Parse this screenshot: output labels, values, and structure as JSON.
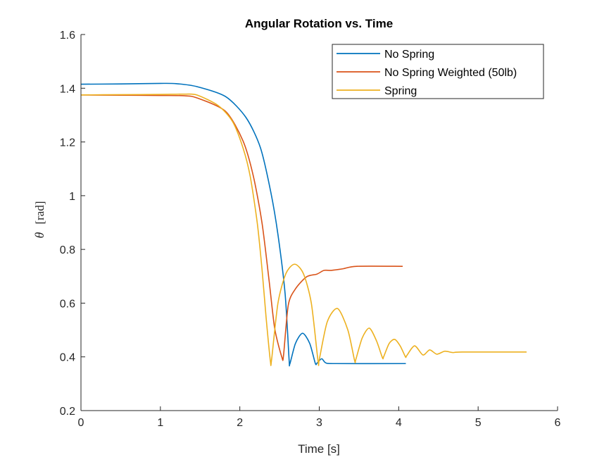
{
  "chart_data": {
    "type": "line",
    "title": "Angular Rotation vs. Time",
    "xlabel": "Time [s]",
    "ylabel_symbol": "θ",
    "ylabel_unit": "[rad]",
    "xlim": [
      0,
      6
    ],
    "ylim": [
      0.2,
      1.6
    ],
    "xticks": [
      0,
      1,
      2,
      3,
      4,
      5,
      6
    ],
    "xtick_labels": [
      "0",
      "1",
      "2",
      "3",
      "4",
      "5",
      "6"
    ],
    "yticks": [
      0.2,
      0.4,
      0.6,
      0.8,
      1.0,
      1.2,
      1.4,
      1.6
    ],
    "ytick_labels": [
      "0.2",
      "0.4",
      "0.6",
      "0.8",
      "1",
      "1.2",
      "1.4",
      "1.6"
    ],
    "grid": false,
    "legend_position": "top-right",
    "series": [
      {
        "name": "No Spring",
        "color": "#0072BD",
        "points": [
          [
            0,
            1.415
          ],
          [
            0.5,
            1.416
          ],
          [
            1.0,
            1.418
          ],
          [
            1.2,
            1.417
          ],
          [
            1.46,
            1.406
          ],
          [
            1.82,
            1.369
          ],
          [
            2.08,
            1.29
          ],
          [
            2.26,
            1.178
          ],
          [
            2.39,
            1.013
          ],
          [
            2.48,
            0.855
          ],
          [
            2.57,
            0.635
          ],
          [
            2.62,
            0.391
          ],
          [
            2.63,
            0.374
          ],
          [
            2.7,
            0.45
          ],
          [
            2.79,
            0.488
          ],
          [
            2.88,
            0.45
          ],
          [
            2.95,
            0.376
          ],
          [
            2.97,
            0.376
          ],
          [
            3.03,
            0.393
          ],
          [
            3.08,
            0.378
          ],
          [
            3.2,
            0.375
          ],
          [
            4.09,
            0.375
          ]
        ]
      },
      {
        "name": "No Spring Weighted (50lb)",
        "color": "#D95319",
        "points": [
          [
            0,
            1.375
          ],
          [
            0.5,
            1.374
          ],
          [
            1.0,
            1.373
          ],
          [
            1.3,
            1.372
          ],
          [
            1.46,
            1.364
          ],
          [
            1.82,
            1.314
          ],
          [
            2.04,
            1.204
          ],
          [
            2.17,
            1.073
          ],
          [
            2.28,
            0.897
          ],
          [
            2.37,
            0.68
          ],
          [
            2.44,
            0.504
          ],
          [
            2.53,
            0.398
          ],
          [
            2.55,
            0.405
          ],
          [
            2.61,
            0.593
          ],
          [
            2.7,
            0.653
          ],
          [
            2.84,
            0.698
          ],
          [
            2.97,
            0.708
          ],
          [
            3.06,
            0.722
          ],
          [
            3.15,
            0.722
          ],
          [
            3.3,
            0.728
          ],
          [
            3.47,
            0.737
          ],
          [
            4.05,
            0.737
          ]
        ]
      },
      {
        "name": "Spring",
        "color": "#EDB120",
        "points": [
          [
            0,
            1.375
          ],
          [
            0.5,
            1.376
          ],
          [
            1.0,
            1.377
          ],
          [
            1.3,
            1.378
          ],
          [
            1.46,
            1.375
          ],
          [
            1.73,
            1.335
          ],
          [
            1.91,
            1.275
          ],
          [
            2.04,
            1.178
          ],
          [
            2.13,
            1.073
          ],
          [
            2.22,
            0.897
          ],
          [
            2.28,
            0.724
          ],
          [
            2.33,
            0.549
          ],
          [
            2.385,
            0.383
          ],
          [
            2.4,
            0.39
          ],
          [
            2.48,
            0.6
          ],
          [
            2.58,
            0.71
          ],
          [
            2.69,
            0.745
          ],
          [
            2.8,
            0.71
          ],
          [
            2.9,
            0.6
          ],
          [
            2.985,
            0.383
          ],
          [
            3.0,
            0.39
          ],
          [
            3.1,
            0.53
          ],
          [
            3.23,
            0.58
          ],
          [
            3.36,
            0.5
          ],
          [
            3.445,
            0.386
          ],
          [
            3.46,
            0.39
          ],
          [
            3.54,
            0.47
          ],
          [
            3.63,
            0.507
          ],
          [
            3.72,
            0.46
          ],
          [
            3.795,
            0.397
          ],
          [
            3.81,
            0.4
          ],
          [
            3.88,
            0.45
          ],
          [
            3.95,
            0.465
          ],
          [
            4.02,
            0.44
          ],
          [
            4.085,
            0.4
          ],
          [
            4.1,
            0.404
          ],
          [
            4.2,
            0.441
          ],
          [
            4.305,
            0.407
          ],
          [
            4.39,
            0.426
          ],
          [
            4.48,
            0.41
          ],
          [
            4.58,
            0.421
          ],
          [
            4.68,
            0.416
          ],
          [
            4.8,
            0.418
          ],
          [
            5.61,
            0.418
          ]
        ]
      }
    ]
  }
}
